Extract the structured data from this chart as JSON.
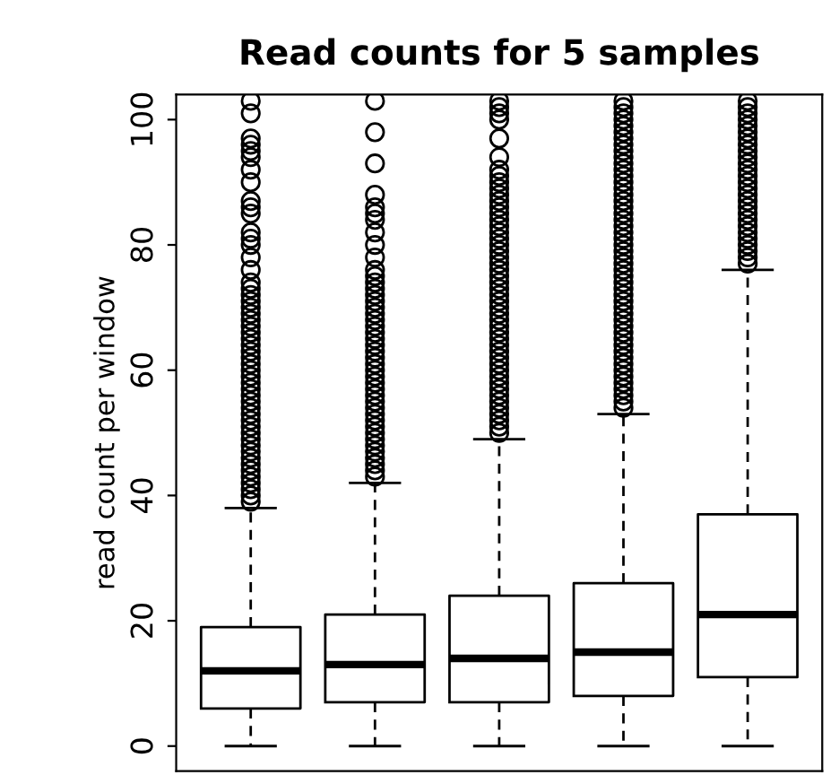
{
  "chart_data": {
    "type": "box",
    "title": "Read counts for 5 samples",
    "ylabel": "read count per window",
    "categories": [
      null,
      null,
      null,
      null,
      null
    ],
    "ylim": [
      -4,
      104
    ],
    "yticks": [
      0,
      20,
      40,
      60,
      80,
      100
    ],
    "grid": false,
    "boxes": [
      {
        "low": 0,
        "q1": 6,
        "median": 12,
        "q3": 19,
        "high": 38,
        "outliers": [
          39,
          40,
          41,
          42,
          43,
          44,
          45,
          46,
          47,
          48,
          49,
          50,
          51,
          52,
          53,
          54,
          55,
          56,
          57,
          58,
          59,
          60,
          61,
          62,
          63,
          64,
          65,
          66,
          67,
          68,
          69,
          70,
          71,
          72,
          73,
          74,
          76,
          78,
          80,
          81,
          82,
          85,
          86,
          87,
          90,
          92,
          94,
          95,
          96,
          97,
          101,
          103
        ]
      },
      {
        "low": 0,
        "q1": 7,
        "median": 13,
        "q3": 21,
        "high": 42,
        "outliers": [
          43,
          44,
          45,
          46,
          47,
          48,
          49,
          50,
          51,
          52,
          53,
          54,
          55,
          56,
          57,
          58,
          59,
          60,
          61,
          62,
          63,
          64,
          65,
          66,
          67,
          68,
          69,
          70,
          71,
          72,
          73,
          74,
          75,
          76,
          78,
          80,
          82,
          84,
          85,
          86,
          88,
          93,
          98,
          103
        ]
      },
      {
        "low": 0,
        "q1": 7,
        "median": 14,
        "q3": 24,
        "high": 49,
        "outliers": [
          50,
          51,
          52,
          53,
          54,
          55,
          56,
          57,
          58,
          59,
          60,
          61,
          62,
          63,
          64,
          65,
          66,
          67,
          68,
          69,
          70,
          71,
          72,
          73,
          74,
          75,
          76,
          77,
          78,
          79,
          80,
          81,
          82,
          83,
          84,
          85,
          86,
          87,
          88,
          89,
          90,
          91,
          92,
          94,
          97,
          100,
          101,
          102,
          103
        ]
      },
      {
        "low": 0,
        "q1": 8,
        "median": 15,
        "q3": 26,
        "high": 53,
        "outliers": [
          54,
          55,
          56,
          57,
          58,
          59,
          60,
          61,
          62,
          63,
          64,
          65,
          66,
          67,
          68,
          69,
          70,
          71,
          72,
          73,
          74,
          75,
          76,
          77,
          78,
          79,
          80,
          81,
          82,
          83,
          84,
          85,
          86,
          87,
          88,
          89,
          90,
          91,
          92,
          93,
          94,
          95,
          96,
          97,
          98,
          99,
          100,
          101,
          102,
          103
        ]
      },
      {
        "low": 0,
        "q1": 11,
        "median": 21,
        "q3": 37,
        "high": 76,
        "outliers": [
          77,
          78,
          79,
          80,
          81,
          82,
          83,
          84,
          85,
          86,
          87,
          88,
          89,
          90,
          91,
          92,
          93,
          94,
          95,
          96,
          97,
          98,
          99,
          100,
          101,
          102,
          103
        ]
      }
    ]
  }
}
